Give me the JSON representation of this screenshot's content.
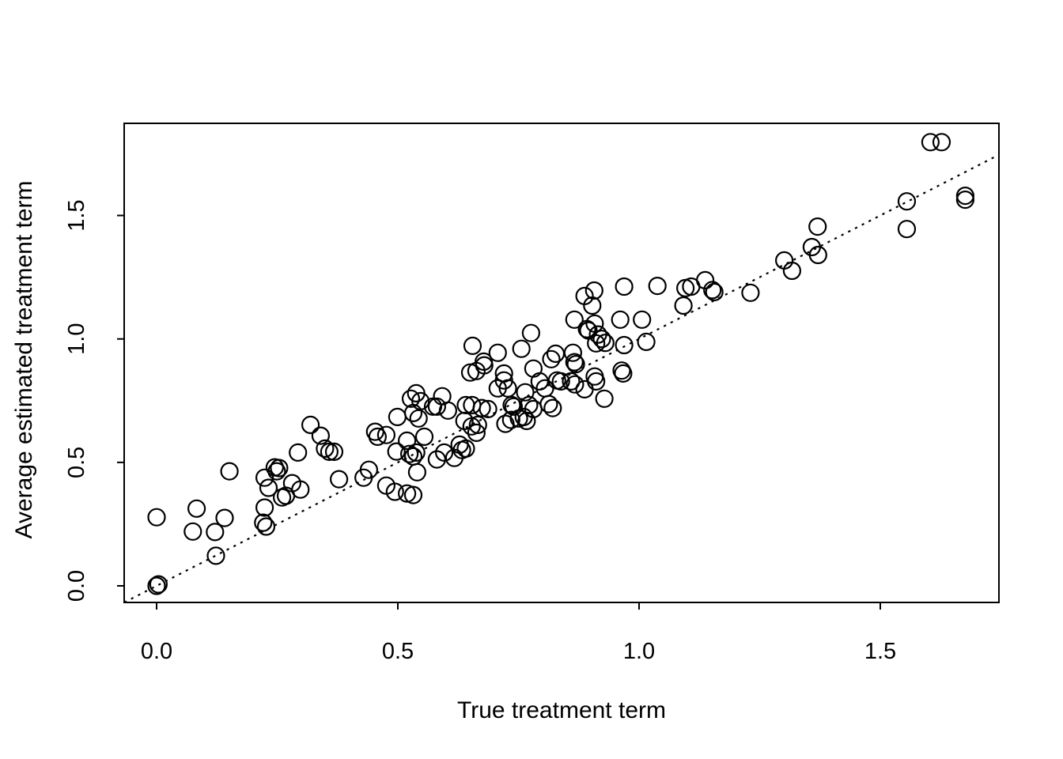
{
  "figure": {
    "background": "#ffffff",
    "foreground": "#000000"
  },
  "chart_data": {
    "type": "scatter",
    "title": "",
    "xlabel": "True treatment term",
    "ylabel": "Average estimated treatment term",
    "x_ticks": [
      0,
      0.5,
      1,
      1.5
    ],
    "x_tick_labels": [
      "0.0",
      "0.5",
      "1.0",
      "1.5"
    ],
    "y_ticks": [
      0,
      0.5,
      1,
      1.5
    ],
    "y_tick_labels": [
      "0.0",
      "0.5",
      "1.0",
      "1.5"
    ],
    "xlim": [
      -0.067,
      1.746
    ],
    "ylim": [
      -0.067,
      1.873
    ],
    "grid": false,
    "legend": null,
    "marker": {
      "shape": "open-circle",
      "radius_px": 10.5,
      "color": "#000000",
      "stroke_width_px": 2.2,
      "fill": "none"
    },
    "reference_line": {
      "type": "identity",
      "slope": 1,
      "intercept": 0,
      "line_style": "dotted",
      "color": "#000000"
    },
    "points": [
      [
        0.0,
        0.0
      ],
      [
        0.004,
        0.006
      ],
      [
        0.0,
        0.278
      ],
      [
        0.083,
        0.313
      ],
      [
        0.075,
        0.22
      ],
      [
        0.121,
        0.218
      ],
      [
        0.141,
        0.275
      ],
      [
        0.151,
        0.464
      ],
      [
        0.123,
        0.122
      ],
      [
        0.224,
        0.317
      ],
      [
        0.221,
        0.256
      ],
      [
        0.227,
        0.24
      ],
      [
        0.224,
        0.438
      ],
      [
        0.232,
        0.397
      ],
      [
        0.245,
        0.48
      ],
      [
        0.249,
        0.464
      ],
      [
        0.254,
        0.477
      ],
      [
        0.26,
        0.358
      ],
      [
        0.268,
        0.365
      ],
      [
        0.281,
        0.416
      ],
      [
        0.298,
        0.39
      ],
      [
        0.293,
        0.54
      ],
      [
        0.319,
        0.652
      ],
      [
        0.34,
        0.608
      ],
      [
        0.349,
        0.556
      ],
      [
        0.358,
        0.543
      ],
      [
        0.368,
        0.543
      ],
      [
        0.378,
        0.432
      ],
      [
        0.429,
        0.438
      ],
      [
        0.44,
        0.47
      ],
      [
        0.453,
        0.624
      ],
      [
        0.458,
        0.604
      ],
      [
        0.476,
        0.611
      ],
      [
        0.499,
        0.684
      ],
      [
        0.497,
        0.544
      ],
      [
        0.519,
        0.588
      ],
      [
        0.527,
        0.758
      ],
      [
        0.538,
        0.78
      ],
      [
        0.532,
        0.7
      ],
      [
        0.532,
        0.524
      ],
      [
        0.54,
        0.46
      ],
      [
        0.494,
        0.381
      ],
      [
        0.519,
        0.374
      ],
      [
        0.532,
        0.368
      ],
      [
        0.476,
        0.406
      ],
      [
        0.524,
        0.534
      ],
      [
        0.538,
        0.54
      ],
      [
        0.581,
        0.512
      ],
      [
        0.596,
        0.54
      ],
      [
        0.617,
        0.518
      ],
      [
        0.633,
        0.55
      ],
      [
        0.592,
        0.768
      ],
      [
        0.604,
        0.71
      ],
      [
        0.573,
        0.726
      ],
      [
        0.581,
        0.726
      ],
      [
        0.547,
        0.748
      ],
      [
        0.543,
        0.678
      ],
      [
        0.555,
        0.604
      ],
      [
        0.628,
        0.572
      ],
      [
        0.641,
        0.556
      ],
      [
        0.638,
        0.668
      ],
      [
        0.653,
        0.646
      ],
      [
        0.666,
        0.652
      ],
      [
        0.663,
        0.62
      ],
      [
        0.641,
        0.732
      ],
      [
        0.654,
        0.732
      ],
      [
        0.655,
        0.972
      ],
      [
        0.707,
        0.944
      ],
      [
        0.756,
        0.96
      ],
      [
        0.678,
        0.908
      ],
      [
        0.679,
        0.893
      ],
      [
        0.65,
        0.864
      ],
      [
        0.663,
        0.87
      ],
      [
        0.72,
        0.86
      ],
      [
        0.72,
        0.832
      ],
      [
        0.707,
        0.8
      ],
      [
        0.728,
        0.8
      ],
      [
        0.781,
        0.88
      ],
      [
        0.764,
        0.784
      ],
      [
        0.723,
        0.656
      ],
      [
        0.735,
        0.672
      ],
      [
        0.751,
        0.678
      ],
      [
        0.761,
        0.684
      ],
      [
        0.767,
        0.668
      ],
      [
        0.674,
        0.72
      ],
      [
        0.687,
        0.716
      ],
      [
        0.74,
        0.726
      ],
      [
        0.736,
        0.732
      ],
      [
        0.772,
        0.732
      ],
      [
        0.781,
        0.716
      ],
      [
        0.776,
        1.024
      ],
      [
        0.794,
        0.828
      ],
      [
        0.805,
        0.8
      ],
      [
        0.818,
        0.918
      ],
      [
        0.827,
        0.94
      ],
      [
        0.83,
        0.832
      ],
      [
        0.838,
        0.828
      ],
      [
        0.859,
        0.828
      ],
      [
        0.867,
        0.816
      ],
      [
        0.887,
        0.796
      ],
      [
        0.863,
        0.944
      ],
      [
        0.866,
        0.906
      ],
      [
        0.869,
        0.898
      ],
      [
        0.866,
        1.078
      ],
      [
        0.887,
        1.174
      ],
      [
        0.903,
        1.135
      ],
      [
        0.907,
        1.196
      ],
      [
        0.892,
        1.04
      ],
      [
        0.895,
        1.034
      ],
      [
        0.813,
        0.736
      ],
      [
        0.821,
        0.72
      ],
      [
        0.908,
        0.848
      ],
      [
        0.911,
        0.828
      ],
      [
        0.964,
        0.872
      ],
      [
        0.967,
        0.86
      ],
      [
        0.928,
        0.758
      ],
      [
        0.908,
        1.062
      ],
      [
        0.961,
        1.078
      ],
      [
        1.006,
        1.078
      ],
      [
        0.915,
        1.018
      ],
      [
        0.923,
        1.0
      ],
      [
        0.93,
        0.984
      ],
      [
        0.911,
        0.982
      ],
      [
        0.969,
        0.975
      ],
      [
        0.969,
        1.212
      ],
      [
        1.038,
        1.215
      ],
      [
        1.015,
        0.988
      ],
      [
        1.096,
        1.206
      ],
      [
        1.108,
        1.212
      ],
      [
        1.137,
        1.238
      ],
      [
        1.152,
        1.198
      ],
      [
        1.156,
        1.19
      ],
      [
        1.092,
        1.135
      ],
      [
        1.231,
        1.187
      ],
      [
        1.301,
        1.318
      ],
      [
        1.317,
        1.276
      ],
      [
        1.37,
        1.455
      ],
      [
        1.358,
        1.372
      ],
      [
        1.371,
        1.34
      ],
      [
        1.555,
        1.557
      ],
      [
        1.555,
        1.445
      ],
      [
        1.604,
        1.797
      ],
      [
        1.627,
        1.797
      ],
      [
        1.676,
        1.58
      ],
      [
        1.676,
        1.564
      ]
    ]
  }
}
